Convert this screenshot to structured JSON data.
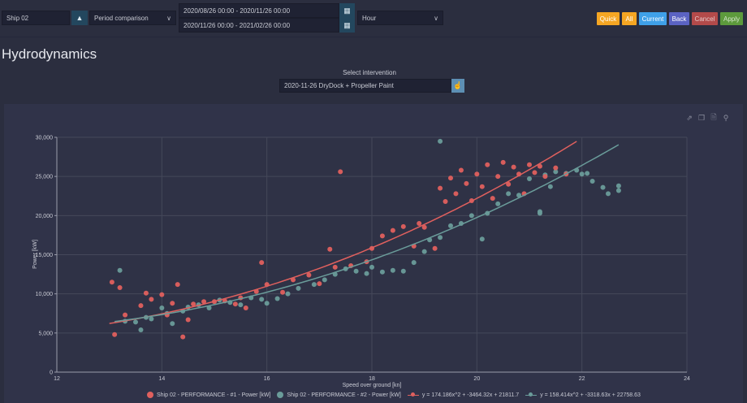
{
  "toolbar": {
    "ship": "Ship 02",
    "mode": "Period comparison",
    "period1": "2020/08/26 00:00 - 2020/11/26 00:00",
    "period2": "2020/11/26 00:00 - 2021/02/26 00:00",
    "resolution": "Hour",
    "buttons": {
      "quick": "Quick",
      "all": "All",
      "current": "Current",
      "back": "Back",
      "cancel": "Cancel",
      "apply": "Apply"
    },
    "colors": {
      "quick": "#f5a623",
      "all": "#f5a623",
      "current": "#3fa0e8",
      "back": "#5b63c3",
      "cancel": "#b34a4a",
      "apply": "#5d9a3c"
    }
  },
  "page": {
    "title": "Hydrodynamics",
    "intervention_label": "Select intervention",
    "intervention_value": "2020-11-26 DryDock + Propeller Paint"
  },
  "chart_data": {
    "type": "scatter",
    "xlabel": "Speed over ground [kn]",
    "ylabel": "Power [kW]",
    "xlim": [
      12,
      24
    ],
    "ylim": [
      0,
      30000
    ],
    "xticks": [
      "12",
      "14",
      "16",
      "18",
      "20",
      "22",
      "24"
    ],
    "yticks": [
      "0",
      "5,000",
      "10,000",
      "15,000",
      "20,000",
      "25,000",
      "30,000"
    ],
    "grid": true,
    "legend_position": "bottom",
    "series": [
      {
        "name": "Ship 02 - PERFORMANCE - #1 - Power [kW]",
        "color": "#e0605e",
        "points": [
          [
            13.05,
            11500
          ],
          [
            13.1,
            4800
          ],
          [
            13.2,
            10800
          ],
          [
            13.3,
            7300
          ],
          [
            13.6,
            8500
          ],
          [
            13.7,
            10100
          ],
          [
            13.8,
            9300
          ],
          [
            14.0,
            9900
          ],
          [
            14.1,
            7300
          ],
          [
            14.2,
            8800
          ],
          [
            14.3,
            11200
          ],
          [
            14.4,
            4500
          ],
          [
            14.5,
            6700
          ],
          [
            14.6,
            8700
          ],
          [
            14.8,
            9000
          ],
          [
            15.0,
            9000
          ],
          [
            15.2,
            9100
          ],
          [
            15.4,
            8700
          ],
          [
            15.5,
            9500
          ],
          [
            15.6,
            8200
          ],
          [
            15.8,
            10300
          ],
          [
            15.9,
            14000
          ],
          [
            16.0,
            11200
          ],
          [
            16.3,
            10200
          ],
          [
            16.5,
            11800
          ],
          [
            16.8,
            12400
          ],
          [
            17.0,
            11300
          ],
          [
            17.2,
            15700
          ],
          [
            17.3,
            13400
          ],
          [
            17.4,
            25600
          ],
          [
            17.6,
            13600
          ],
          [
            17.9,
            14100
          ],
          [
            18.0,
            15800
          ],
          [
            18.2,
            17400
          ],
          [
            18.4,
            18100
          ],
          [
            18.6,
            18600
          ],
          [
            18.8,
            16100
          ],
          [
            18.9,
            19000
          ],
          [
            19.0,
            18500
          ],
          [
            19.2,
            15800
          ],
          [
            19.3,
            23500
          ],
          [
            19.4,
            21800
          ],
          [
            19.5,
            24800
          ],
          [
            19.6,
            22800
          ],
          [
            19.7,
            25800
          ],
          [
            19.8,
            24100
          ],
          [
            19.9,
            21900
          ],
          [
            20.0,
            25300
          ],
          [
            20.1,
            23700
          ],
          [
            20.2,
            26500
          ],
          [
            20.3,
            22200
          ],
          [
            20.4,
            25000
          ],
          [
            20.5,
            26800
          ],
          [
            20.6,
            24000
          ],
          [
            20.7,
            26200
          ],
          [
            20.8,
            25300
          ],
          [
            20.9,
            22800
          ],
          [
            21.0,
            26500
          ],
          [
            21.1,
            25500
          ],
          [
            21.2,
            26300
          ],
          [
            21.3,
            25000
          ],
          [
            21.5,
            26100
          ],
          [
            21.7,
            25300
          ]
        ]
      },
      {
        "name": "Ship 02 - PERFORMANCE - #2 - Power [kW]",
        "color": "#6a9c9a",
        "points": [
          [
            13.2,
            13000
          ],
          [
            13.3,
            6500
          ],
          [
            13.5,
            6400
          ],
          [
            13.6,
            5400
          ],
          [
            13.7,
            7000
          ],
          [
            13.8,
            6800
          ],
          [
            14.0,
            8200
          ],
          [
            14.1,
            7500
          ],
          [
            14.2,
            6200
          ],
          [
            14.4,
            7800
          ],
          [
            14.5,
            8300
          ],
          [
            14.7,
            8600
          ],
          [
            14.9,
            8200
          ],
          [
            15.1,
            9200
          ],
          [
            15.3,
            8900
          ],
          [
            15.5,
            8600
          ],
          [
            15.7,
            9500
          ],
          [
            15.9,
            9300
          ],
          [
            16.0,
            8800
          ],
          [
            16.2,
            9400
          ],
          [
            16.4,
            10000
          ],
          [
            16.6,
            10700
          ],
          [
            16.9,
            11200
          ],
          [
            17.1,
            11800
          ],
          [
            17.3,
            12500
          ],
          [
            17.5,
            13200
          ],
          [
            17.7,
            12900
          ],
          [
            17.9,
            12600
          ],
          [
            18.0,
            13400
          ],
          [
            18.2,
            12800
          ],
          [
            18.4,
            13000
          ],
          [
            18.6,
            12900
          ],
          [
            18.8,
            14000
          ],
          [
            19.0,
            15400
          ],
          [
            19.1,
            16900
          ],
          [
            19.3,
            17200
          ],
          [
            19.5,
            18700
          ],
          [
            19.7,
            19000
          ],
          [
            19.9,
            20000
          ],
          [
            20.1,
            17000
          ],
          [
            20.2,
            20300
          ],
          [
            20.4,
            21500
          ],
          [
            20.6,
            22800
          ],
          [
            20.8,
            22600
          ],
          [
            21.0,
            24700
          ],
          [
            21.2,
            20300
          ],
          [
            21.3,
            25200
          ],
          [
            21.4,
            23700
          ],
          [
            21.5,
            25600
          ],
          [
            21.7,
            25400
          ],
          [
            21.9,
            25800
          ],
          [
            22.0,
            25300
          ],
          [
            22.1,
            25400
          ],
          [
            22.2,
            24400
          ],
          [
            22.4,
            23600
          ],
          [
            22.5,
            22800
          ],
          [
            22.7,
            23800
          ],
          [
            22.7,
            23200
          ],
          [
            19.3,
            29500
          ],
          [
            21.2,
            20500
          ]
        ]
      }
    ],
    "fits": [
      {
        "name": "y = 174.186x^2 + -3464.32x + 21811.7",
        "color": "#e0605e",
        "coef": [
          174.186,
          -3464.32,
          21811.7
        ],
        "xrange": [
          13,
          21.9
        ]
      },
      {
        "name": "y = 158.414x^2 + -3318.63x + 22758.63",
        "color": "#6a9c9a",
        "coef": [
          158.414,
          -3318.63,
          22758.63
        ],
        "xrange": [
          13.1,
          22.7
        ]
      }
    ]
  }
}
